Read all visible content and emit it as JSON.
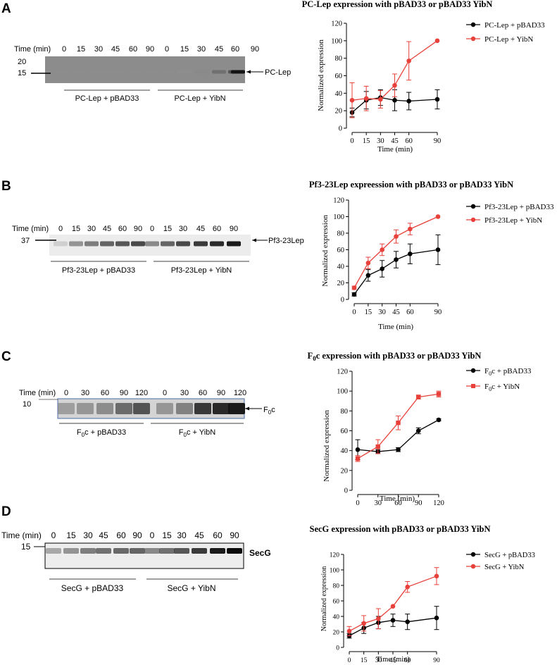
{
  "figure": {
    "panels": [
      {
        "id": "A",
        "gel": {
          "time_label": "Time (min)",
          "lanes": [
            "0",
            "15",
            "30",
            "45",
            "60",
            "90",
            "0",
            "15",
            "30",
            "45",
            "60",
            "90"
          ],
          "markers": [
            {
              "label": "20"
            },
            {
              "label": "15"
            }
          ],
          "band_label": "PC-Lep",
          "groups": [
            "PC-Lep + pBAD33",
            "PC-Lep + YibN"
          ],
          "background": "#8c8c8c",
          "intensities": [
            0.02,
            0.02,
            0.02,
            0.02,
            0.02,
            0.02,
            0.02,
            0.05,
            0.35,
            0.55,
            0.7,
            0.95
          ]
        }
      },
      {
        "id": "B",
        "gel": {
          "time_label": "Time (min)",
          "lanes": [
            "0",
            "15",
            "30",
            "45",
            "60",
            "90",
            "0",
            "15",
            "30",
            "45",
            "60",
            "90"
          ],
          "markers": [
            {
              "label": "37"
            }
          ],
          "band_label": "Pf3-23Lep",
          "groups": [
            "Pf3-23Lep + pBAD33",
            "Pf3-23Lep + YibN"
          ],
          "background": "#ececec",
          "intensities": [
            0.15,
            0.5,
            0.6,
            0.7,
            0.75,
            0.8,
            0.55,
            0.7,
            0.8,
            0.85,
            0.9,
            0.95
          ]
        }
      },
      {
        "id": "C",
        "gel": {
          "time_label": "Time (min)",
          "lanes": [
            "0",
            "30",
            "60",
            "90",
            "120",
            "0",
            "30",
            "60",
            "90",
            "120"
          ],
          "markers": [
            {
              "label": "10"
            }
          ],
          "band_label_main": "F",
          "band_label_sub": "0",
          "band_label_tail": "c",
          "groups": [
            {
              "main": "F",
              "sub": "0",
              "tail": "c + pBAD33"
            },
            {
              "main": "F",
              "sub": "0",
              "tail": "c + YibN"
            }
          ],
          "background": "#d4d4d4",
          "intensities": [
            0.4,
            0.45,
            0.5,
            0.65,
            0.75,
            0.45,
            0.55,
            0.85,
            0.9,
            0.95
          ]
        }
      },
      {
        "id": "D",
        "gel": {
          "time_label": "Time (min)",
          "lanes": [
            "0",
            "15",
            "30",
            "45",
            "60",
            "90",
            "0",
            "15",
            "30",
            "45",
            "60",
            "90"
          ],
          "markers": [
            {
              "label": "15"
            }
          ],
          "band_label": "SecG",
          "groups": [
            "SecG + pBAD33",
            "SecG + YibN"
          ],
          "background": "#ededed",
          "intensities": [
            0.4,
            0.5,
            0.6,
            0.65,
            0.68,
            0.7,
            0.55,
            0.65,
            0.75,
            0.85,
            0.95,
            1.0
          ]
        }
      }
    ]
  },
  "chart_data": [
    {
      "type": "line",
      "title": "PC-Lep expression with pBAD33 or pBAD33 YibN",
      "xlabel": "Time (min)",
      "ylabel": "Normalized expression",
      "x": [
        0,
        15,
        30,
        45,
        60,
        90
      ],
      "x_ticks": [
        "0",
        "15",
        "30",
        "45",
        "60",
        "90"
      ],
      "y_ticks": [
        0,
        20,
        40,
        60,
        80,
        100,
        120
      ],
      "ylim": [
        0,
        120
      ],
      "legend_position": "top-right",
      "marker": "circle",
      "series": [
        {
          "name": "PC-Lep + pBAD33",
          "color": "#000000",
          "values": [
            18,
            32,
            35,
            32,
            31,
            33
          ],
          "errors": [
            5,
            10,
            9,
            12,
            10,
            11
          ]
        },
        {
          "name": "PC-Lep + YibN",
          "color": "#e8403a",
          "values": [
            32,
            34,
            33,
            49,
            77,
            100
          ],
          "errors": [
            20,
            14,
            10,
            13,
            22,
            0
          ]
        }
      ]
    },
    {
      "type": "line",
      "title": "Pf3-23Lep expreession with pBAD33 or pBAD33 YibN",
      "xlabel": "Time (min)",
      "ylabel": "Normalized expression",
      "x": [
        0,
        15,
        30,
        45,
        60,
        90
      ],
      "x_ticks": [
        "0",
        "15",
        "30",
        "45",
        "60",
        "90"
      ],
      "y_ticks": [
        0,
        20,
        40,
        60,
        80,
        100,
        120
      ],
      "ylim": [
        0,
        120
      ],
      "legend_position": "top-right",
      "marker": "circle",
      "series": [
        {
          "name": "Pf3-23Lep + pBAD33",
          "color": "#000000",
          "values": [
            6,
            29,
            37,
            48,
            55,
            60
          ],
          "errors": [
            2,
            7,
            10,
            10,
            12,
            18
          ]
        },
        {
          "name": "Pf3-23Lep + YibN",
          "color": "#e8403a",
          "values": [
            14,
            44,
            60,
            76,
            85,
            100
          ],
          "errors": [
            2,
            7,
            7,
            8,
            7,
            0
          ]
        }
      ]
    },
    {
      "type": "line",
      "title_main": "F",
      "title_sub": "0",
      "title_tail": "c expression with pBAD33 or pBAD33 YibN",
      "xlabel": "Time (min)",
      "ylabel": "Normalized expression",
      "x": [
        0,
        30,
        60,
        90,
        120
      ],
      "x_ticks": [
        "0",
        "30",
        "60",
        "90",
        "120"
      ],
      "y_ticks": [
        0,
        20,
        40,
        60,
        80,
        100,
        120
      ],
      "ylim": [
        0,
        120
      ],
      "legend_position": "top-right",
      "series": [
        {
          "name_main": "F",
          "name_sub": "0",
          "name_tail": "c + pBAD33",
          "marker": "circle",
          "color": "#000000",
          "values": [
            41,
            39,
            41,
            60,
            71
          ],
          "errors": [
            10,
            2,
            2,
            3,
            1
          ]
        },
        {
          "name_main": "F",
          "name_sub": "0",
          "name_tail": "c + YibN",
          "marker": "square",
          "color": "#e8403a",
          "values": [
            32,
            44,
            68,
            94,
            97
          ],
          "errors": [
            3,
            7,
            7,
            2,
            3
          ]
        }
      ]
    },
    {
      "type": "line",
      "title": "SecG expression with pBAD33 or pBAD33 YibN",
      "xlabel": "Time (min)",
      "ylabel": "Normalized expression",
      "x": [
        0,
        15,
        30,
        45,
        60,
        90
      ],
      "x_ticks": [
        "0",
        "15",
        "30",
        "45",
        "60",
        "90"
      ],
      "y_ticks": [
        0,
        20,
        40,
        60,
        80,
        100,
        120
      ],
      "ylim": [
        0,
        120
      ],
      "legend_position": "top-right",
      "marker": "circle",
      "series": [
        {
          "name": "SecG + pBAD33",
          "color": "#000000",
          "values": [
            15,
            25,
            32,
            35,
            33,
            38
          ],
          "errors": [
            3,
            7,
            8,
            8,
            10,
            15
          ]
        },
        {
          "name": "SecG + YibN",
          "color": "#e8403a",
          "values": [
            21,
            31,
            37,
            53,
            78,
            92
          ],
          "errors": [
            6,
            10,
            13,
            0,
            7,
            11
          ]
        }
      ]
    }
  ]
}
